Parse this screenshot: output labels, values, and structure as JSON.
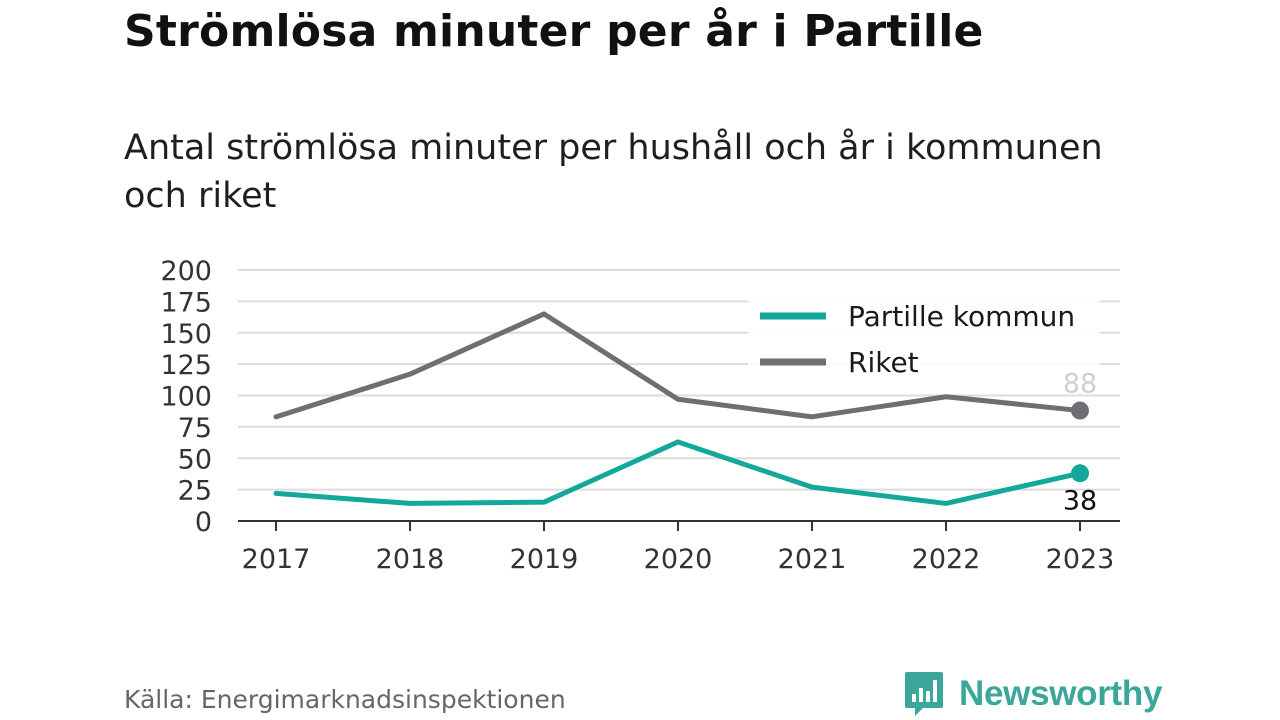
{
  "header": {
    "title": "Strömlösa minuter per år i Partille",
    "subtitle": "Antal strömlösa minuter per hushåll och år i kommunen och riket"
  },
  "footer": {
    "source": "Källa: Energimarknadsinspektionen",
    "brand": "Newsworthy",
    "brand_icon": "newsworthy-logo-icon",
    "brand_color": "#3aa79a"
  },
  "chart_data": {
    "type": "line",
    "x": [
      "2017",
      "2018",
      "2019",
      "2020",
      "2021",
      "2022",
      "2023"
    ],
    "ylim": [
      0,
      200
    ],
    "yticks": [
      "0",
      "25",
      "50",
      "75",
      "100",
      "125",
      "150",
      "175",
      "200"
    ],
    "grid": true,
    "legend_position": "top-right",
    "series": [
      {
        "name": "Partille kommun",
        "color": "#13a89a",
        "values": [
          22,
          14,
          15,
          63,
          27,
          14,
          38
        ],
        "end_label": "38"
      },
      {
        "name": "Riket",
        "color": "#6e6e73",
        "values": [
          83,
          117,
          165,
          97,
          83,
          99,
          88
        ],
        "end_label": "88"
      }
    ]
  }
}
